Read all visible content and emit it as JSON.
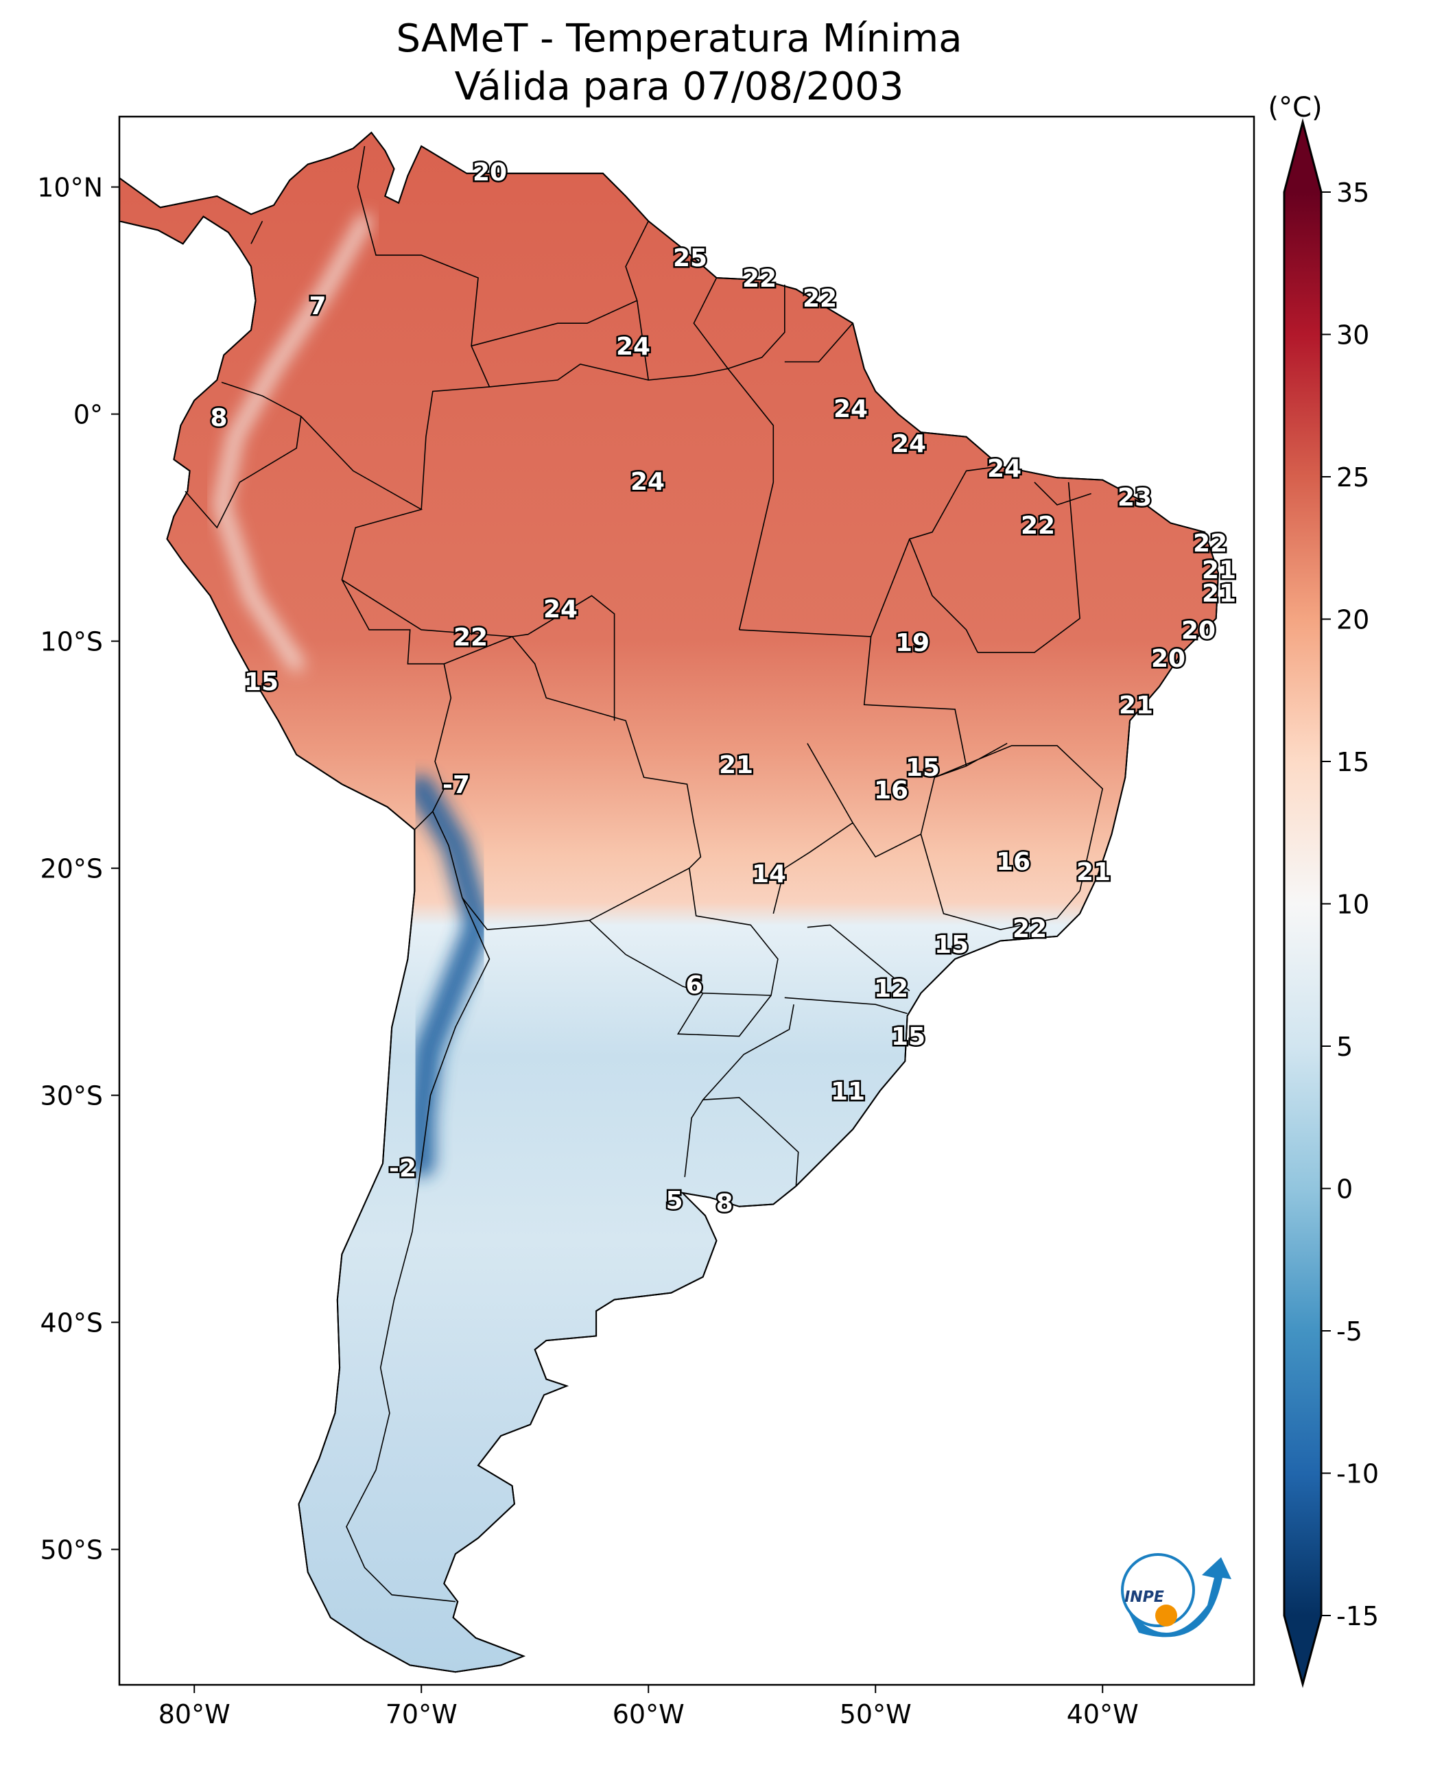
{
  "title": {
    "line1": "SAMeT - Temperatura Mínima",
    "line2": "Válida para 07/08/2003"
  },
  "colorbar": {
    "unit": "(°C)",
    "ticks": [
      "35",
      "30",
      "25",
      "20",
      "15",
      "10",
      "5",
      "0",
      "-5",
      "-10",
      "-15"
    ],
    "min": -15,
    "max": 35,
    "colors": [
      "#053061",
      "#2166ac",
      "#4393c3",
      "#92c5de",
      "#d1e5f0",
      "#f7f7f7",
      "#fddbc7",
      "#f4a582",
      "#d6604d",
      "#b2182b",
      "#67001f"
    ]
  },
  "axes": {
    "lat_ticks": [
      "10°N",
      "0°",
      "10°S",
      "20°S",
      "30°S",
      "40°S",
      "50°S"
    ],
    "lon_ticks": [
      "80°W",
      "70°W",
      "60°W",
      "50°W",
      "40°W"
    ]
  },
  "station_labels": [
    "20",
    "25",
    "22",
    "22",
    "7",
    "24",
    "8",
    "24",
    "24",
    "24",
    "24",
    "23",
    "22",
    "22",
    "21",
    "21",
    "20",
    "20",
    "24",
    "22",
    "19",
    "21",
    "15",
    "21",
    "15",
    "16",
    "-7",
    "14",
    "16",
    "21",
    "22",
    "15",
    "6",
    "12",
    "15",
    "11",
    "-2",
    "5",
    "8"
  ],
  "logo": {
    "text": "INPE"
  }
}
